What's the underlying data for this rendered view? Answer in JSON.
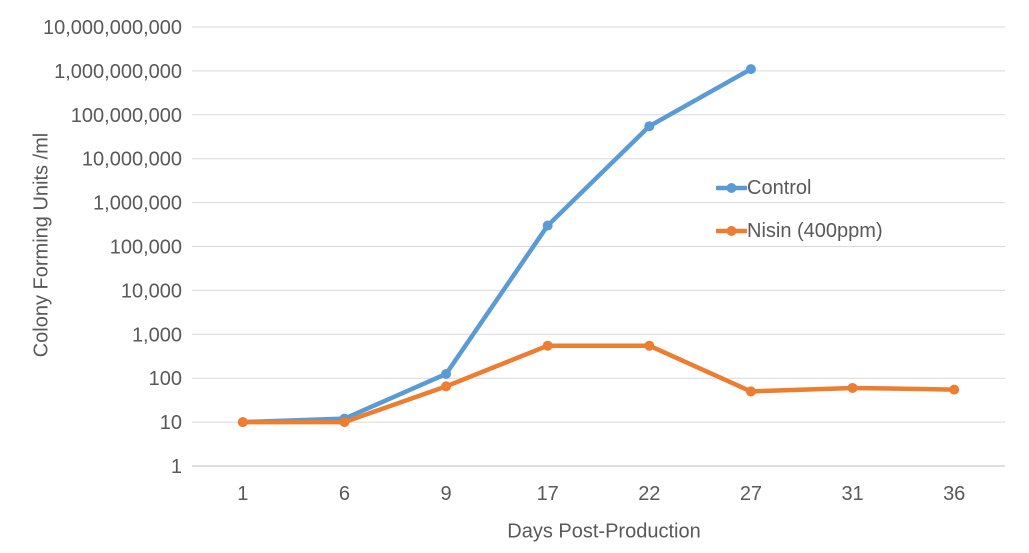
{
  "colors": {
    "text": "#595959",
    "gridline": "#D9D9D9",
    "axis_line": "#BFBFBF",
    "background": "#FFFFFF",
    "control_series": "#5B9BD5",
    "nisin_series": "#ED7D31"
  },
  "chart_data": {
    "type": "line",
    "title": "",
    "xlabel": "Days Post-Production",
    "ylabel": "Colony Forming Units /ml",
    "x_categories": [
      "1",
      "6",
      "9",
      "17",
      "22",
      "27",
      "31",
      "36"
    ],
    "y_scale": "log10",
    "ylim": [
      1,
      10000000000
    ],
    "y_tick_labels": [
      "1",
      "10",
      "100",
      "1,000",
      "10,000",
      "100,000",
      "1,000,000",
      "10,000,000",
      "100,000,000",
      "1,000,000,000",
      "10,000,000,000"
    ],
    "grid": true,
    "legend_position": "inside-right",
    "series": [
      {
        "name": "Control",
        "color": "#5B9BD5",
        "marker": "circle",
        "values": [
          10,
          12,
          125,
          300000,
          55000000,
          1100000000,
          null,
          null
        ]
      },
      {
        "name": "Nisin (400ppm)",
        "color": "#ED7D31",
        "marker": "circle",
        "values": [
          10,
          10,
          65,
          550,
          550,
          50,
          60,
          55
        ]
      }
    ]
  }
}
